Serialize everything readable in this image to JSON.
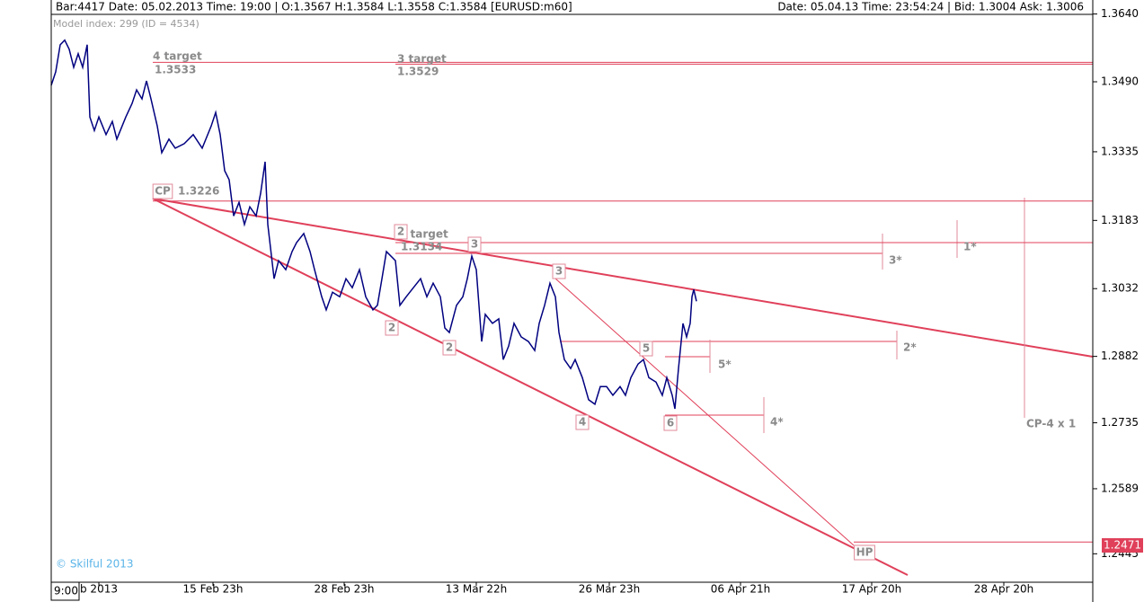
{
  "chart_data": {
    "type": "line",
    "title": "Bar:4417  Date: 05.02.2013  Time: 19:00 | O:1.3567 H:1.3584 L:1.3558 C:1.3584   [EURUSD:m60]",
    "subtitle": "Date: 05.04.13 Time: 23:54:24 | Bid: 1.3004  Ask: 1.3006",
    "model_label": "Model index: 299  (ID = 4534)",
    "copyright": "© Skilful 2013",
    "time_box": "9:00",
    "xlim": [
      -33,
      1126
    ],
    "xticks": [
      {
        "value": 20,
        "label": "b 2013"
      },
      {
        "value": 147,
        "label": "15 Feb 23h"
      },
      {
        "value": 293,
        "label": "28 Feb 23h"
      },
      {
        "value": 440,
        "label": "13 Mar 22h"
      },
      {
        "value": 588,
        "label": "26 Mar 23h"
      },
      {
        "value": 734,
        "label": "06 Apr 21h"
      },
      {
        "value": 880,
        "label": "17 Apr 20h"
      },
      {
        "value": 1027,
        "label": "28 Apr 20h"
      }
    ],
    "ylim": [
      1.2382,
      1.3671
    ],
    "yticks": [
      {
        "value": 1.364,
        "label": "1.3640"
      },
      {
        "value": 1.349,
        "label": "1.3490"
      },
      1.3335,
      1.3183,
      1.3032,
      1.2882,
      1.2735,
      1.2589,
      1.2445
    ],
    "series": [
      {
        "color": "#000080",
        "x": [
          -33,
          -28,
          -23,
          -18,
          -13,
          -8,
          -3,
          2,
          7,
          10,
          15,
          20,
          28,
          35,
          40,
          50,
          57,
          62,
          68,
          73,
          78,
          85,
          90,
          98,
          105,
          115,
          125,
          135,
          145,
          150,
          155,
          160,
          165,
          170,
          176,
          182,
          188,
          195,
          200,
          205,
          208,
          215,
          220,
          228,
          235,
          240,
          248,
          255,
          260,
          268,
          273,
          280,
          288,
          295,
          302,
          310,
          317,
          325,
          330,
          335,
          340,
          350,
          355,
          362,
          370,
          378,
          385,
          392,
          400,
          405,
          410,
          418,
          425,
          430,
          435,
          440,
          446,
          450,
          458,
          465,
          470,
          476,
          482,
          490,
          498,
          505,
          510,
          516,
          522,
          528,
          532,
          538,
          545,
          550,
          558,
          565,
          572,
          578,
          585,
          592,
          600,
          606,
          612,
          620,
          626,
          632,
          640,
          647,
          652,
          658,
          661,
          665,
          670,
          674,
          678,
          680,
          682,
          685
        ],
        "values": [
          1.3482,
          1.3512,
          1.3572,
          1.3582,
          1.3562,
          1.3522,
          1.3552,
          1.3522,
          1.3572,
          1.3412,
          1.3382,
          1.3412,
          1.3373,
          1.3402,
          1.3363,
          1.3412,
          1.3442,
          1.3472,
          1.3452,
          1.3492,
          1.3452,
          1.3392,
          1.3333,
          1.3363,
          1.3343,
          1.3353,
          1.3373,
          1.3343,
          1.3392,
          1.3422,
          1.3373,
          1.3293,
          1.3273,
          1.3193,
          1.3223,
          1.3174,
          1.3213,
          1.3193,
          1.3243,
          1.3313,
          1.3174,
          1.3054,
          1.3094,
          1.3074,
          1.3114,
          1.3134,
          1.3154,
          1.3114,
          1.3074,
          1.3014,
          1.2985,
          1.3024,
          1.3014,
          1.3054,
          1.3034,
          1.3074,
          1.3014,
          1.2985,
          1.2995,
          1.3054,
          1.3114,
          1.3094,
          1.2995,
          1.3014,
          1.3034,
          1.3054,
          1.3014,
          1.3044,
          1.3014,
          1.2945,
          1.2935,
          1.2995,
          1.3014,
          1.3054,
          1.3104,
          1.3074,
          1.2915,
          1.2975,
          1.2955,
          1.2965,
          1.2875,
          1.2905,
          1.2955,
          1.2925,
          1.2915,
          1.2895,
          1.2955,
          1.2995,
          1.3044,
          1.3014,
          1.2935,
          1.2875,
          1.2855,
          1.2875,
          1.2835,
          1.2786,
          1.2776,
          1.2815,
          1.2815,
          1.2796,
          1.2815,
          1.2796,
          1.2835,
          1.2865,
          1.2875,
          1.2835,
          1.2825,
          1.2796,
          1.2835,
          1.2796,
          1.2766,
          1.2855,
          1.2955,
          1.2925,
          1.2955,
          1.3014,
          1.303,
          1.3004
        ]
      }
    ],
    "level_color": "#e0405a",
    "levels": [
      {
        "label": "4 target",
        "value": 1.3533
      },
      {
        "label": "3 target",
        "value": 1.3529
      },
      {
        "label": "CP",
        "value": 1.3226
      },
      {
        "label": "2 target",
        "value": 1.3134
      },
      {
        "label": "HP",
        "value": 1.2471
      }
    ],
    "wave_labels": [
      "2",
      "2",
      "3",
      "2",
      "3",
      "4",
      "5",
      "6"
    ],
    "projection_labels": [
      "1*",
      "3*",
      "2*",
      "5*",
      "4*"
    ],
    "projection_note": "CP-4 x 1"
  }
}
